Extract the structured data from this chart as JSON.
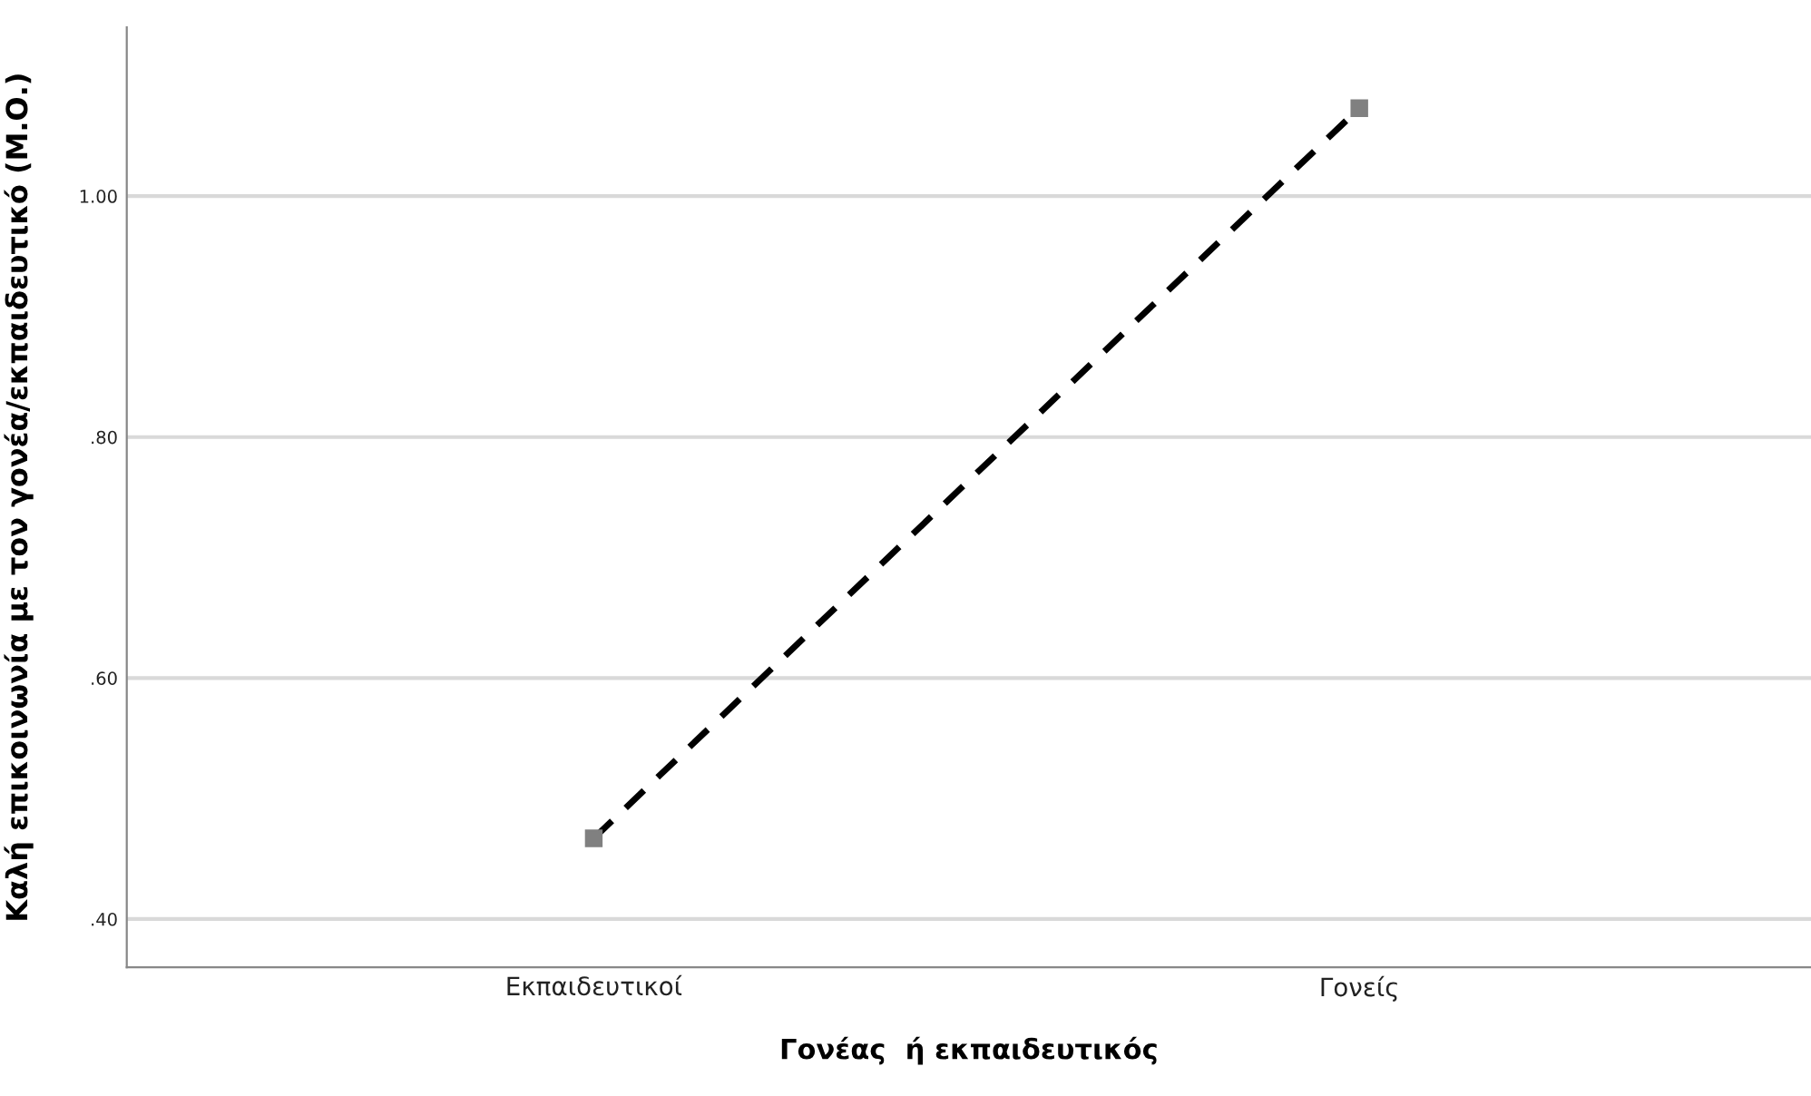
{
  "chart_data": {
    "type": "line",
    "xlabel": "Γονέας  ή εκπαιδευτικός",
    "ylabel": "Καλή επικοινωνία με τον γονέα/εκπαιδευτικό (Μ.Ο.)",
    "categories": [
      "Εκπαιδευτικοί",
      "Γονείς"
    ],
    "series": [
      {
        "color": "#000000",
        "values": [
          0.467,
          1.073
        ]
      }
    ],
    "ylim": [
      0.36,
      1.14
    ],
    "yticks": [
      {
        "value": 0.4,
        "label": ".40"
      },
      {
        "value": 0.6,
        "label": ".60"
      },
      {
        "value": 0.8,
        "label": ".80"
      },
      {
        "value": 1.0,
        "label": "1.00"
      }
    ],
    "grid": "y",
    "marker": "square",
    "line_style": "dashed"
  }
}
